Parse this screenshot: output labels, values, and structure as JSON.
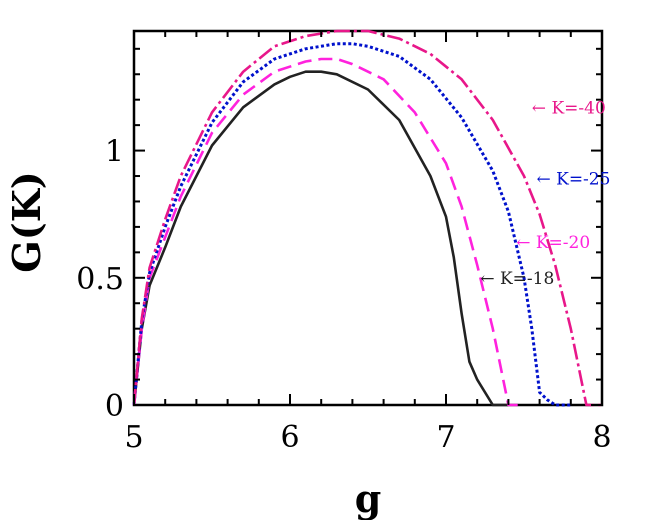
{
  "chart_data": {
    "type": "line",
    "title": "",
    "xlabel": "g",
    "ylabel": "G(K)",
    "xlim": [
      5,
      8
    ],
    "ylim": [
      0,
      1.47
    ],
    "x_ticks": [
      5,
      6,
      7,
      8
    ],
    "x_tick_labels": [
      "5",
      "6",
      "7",
      "8"
    ],
    "y_ticks": [
      0,
      0.5,
      1
    ],
    "y_tick_labels": [
      "0",
      "0.5",
      "1"
    ],
    "grid": false,
    "legend": "none",
    "series": [
      {
        "name": "K=-18",
        "color": "#222222",
        "style": "solid",
        "points": [
          [
            5.0,
            0.0
          ],
          [
            5.05,
            0.3
          ],
          [
            5.1,
            0.47
          ],
          [
            5.2,
            0.62
          ],
          [
            5.3,
            0.78
          ],
          [
            5.5,
            1.02
          ],
          [
            5.7,
            1.17
          ],
          [
            5.9,
            1.26
          ],
          [
            6.0,
            1.29
          ],
          [
            6.1,
            1.31
          ],
          [
            6.2,
            1.31
          ],
          [
            6.3,
            1.3
          ],
          [
            6.5,
            1.24
          ],
          [
            6.7,
            1.12
          ],
          [
            6.9,
            0.9
          ],
          [
            7.0,
            0.74
          ],
          [
            7.05,
            0.58
          ],
          [
            7.1,
            0.36
          ],
          [
            7.15,
            0.17
          ],
          [
            7.2,
            0.1
          ],
          [
            7.3,
            0.0
          ],
          [
            7.4,
            0.0
          ]
        ]
      },
      {
        "name": "K=-20",
        "color": "#ff22dd",
        "style": "dashed",
        "points": [
          [
            5.0,
            0.0
          ],
          [
            5.05,
            0.3
          ],
          [
            5.1,
            0.5
          ],
          [
            5.2,
            0.66
          ],
          [
            5.3,
            0.82
          ],
          [
            5.5,
            1.07
          ],
          [
            5.7,
            1.22
          ],
          [
            5.9,
            1.31
          ],
          [
            6.1,
            1.35
          ],
          [
            6.2,
            1.36
          ],
          [
            6.3,
            1.36
          ],
          [
            6.4,
            1.34
          ],
          [
            6.6,
            1.28
          ],
          [
            6.8,
            1.15
          ],
          [
            7.0,
            0.95
          ],
          [
            7.1,
            0.78
          ],
          [
            7.2,
            0.55
          ],
          [
            7.3,
            0.3
          ],
          [
            7.35,
            0.15
          ],
          [
            7.4,
            0.0
          ],
          [
            7.5,
            0.0
          ]
        ]
      },
      {
        "name": "K=-25",
        "color": "#0011cc",
        "style": "dotted",
        "points": [
          [
            5.0,
            0.0
          ],
          [
            5.05,
            0.33
          ],
          [
            5.1,
            0.52
          ],
          [
            5.2,
            0.7
          ],
          [
            5.3,
            0.86
          ],
          [
            5.5,
            1.11
          ],
          [
            5.7,
            1.27
          ],
          [
            5.9,
            1.36
          ],
          [
            6.1,
            1.4
          ],
          [
            6.3,
            1.42
          ],
          [
            6.4,
            1.42
          ],
          [
            6.5,
            1.41
          ],
          [
            6.7,
            1.37
          ],
          [
            6.9,
            1.28
          ],
          [
            7.1,
            1.13
          ],
          [
            7.3,
            0.92
          ],
          [
            7.4,
            0.76
          ],
          [
            7.5,
            0.5
          ],
          [
            7.55,
            0.3
          ],
          [
            7.6,
            0.05
          ],
          [
            7.65,
            0.02
          ],
          [
            7.7,
            0.0
          ],
          [
            7.8,
            0.0
          ]
        ]
      },
      {
        "name": "K=-40",
        "color": "#e8178a",
        "style": "dashdot",
        "points": [
          [
            5.0,
            0.0
          ],
          [
            5.05,
            0.34
          ],
          [
            5.1,
            0.54
          ],
          [
            5.2,
            0.73
          ],
          [
            5.3,
            0.9
          ],
          [
            5.5,
            1.15
          ],
          [
            5.7,
            1.31
          ],
          [
            5.9,
            1.41
          ],
          [
            6.1,
            1.45
          ],
          [
            6.3,
            1.47
          ],
          [
            6.5,
            1.47
          ],
          [
            6.7,
            1.44
          ],
          [
            6.9,
            1.38
          ],
          [
            7.1,
            1.28
          ],
          [
            7.3,
            1.12
          ],
          [
            7.5,
            0.9
          ],
          [
            7.6,
            0.75
          ],
          [
            7.7,
            0.55
          ],
          [
            7.8,
            0.3
          ],
          [
            7.85,
            0.15
          ],
          [
            7.9,
            0.0
          ],
          [
            8.0,
            0.0
          ]
        ]
      }
    ],
    "annotations": [
      {
        "text": "← K=-40",
        "color": "#e8178a",
        "x": 7.55,
        "y": 1.17
      },
      {
        "text": "← K=-25",
        "color": "#0011cc",
        "x": 7.58,
        "y": 0.89
      },
      {
        "text": "← K=-20",
        "color": "#ff22dd",
        "x": 7.45,
        "y": 0.64
      },
      {
        "text": "← K=-18",
        "color": "#222222",
        "x": 7.22,
        "y": 0.5
      }
    ]
  }
}
